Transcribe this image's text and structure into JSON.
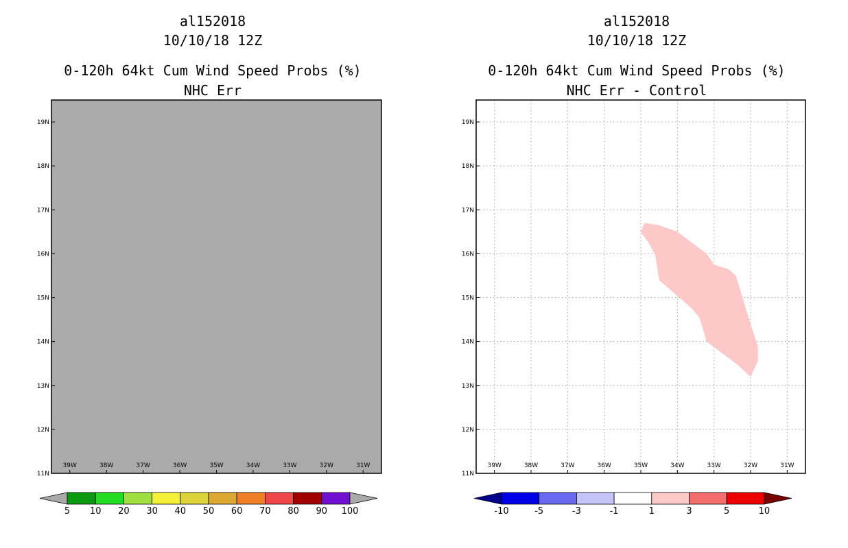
{
  "left_panel": {
    "storm_id": "al152018",
    "date": "10/10/18 12Z",
    "product": "0-120h 64kt Cum Wind Speed Probs (%)",
    "subtitle": "NHC Err",
    "field_color": "#aaaaaa",
    "colorbar": {
      "labels": [
        "5",
        "10",
        "20",
        "30",
        "40",
        "50",
        "60",
        "70",
        "80",
        "90",
        "100"
      ],
      "colors": [
        "#0a9a10",
        "#22dd22",
        "#9fdf40",
        "#f4f03a",
        "#dcd23a",
        "#dca832",
        "#f08028",
        "#f04848",
        "#a00000",
        "#7010d0"
      ],
      "end_color": "#aaaaaa"
    }
  },
  "right_panel": {
    "storm_id": "al152018",
    "date": "10/10/18 12Z",
    "product": "0-120h 64kt Cum Wind Speed Probs (%)",
    "subtitle": "NHC Err - Control",
    "region_color": "#fcc8c8",
    "region_lonlat": [
      [
        -34.9,
        16.7
      ],
      [
        -34.5,
        16.65
      ],
      [
        -34.0,
        16.5
      ],
      [
        -33.2,
        16.0
      ],
      [
        -33.0,
        15.75
      ],
      [
        -32.6,
        15.65
      ],
      [
        -32.4,
        15.5
      ],
      [
        -32.0,
        14.4
      ],
      [
        -31.8,
        13.9
      ],
      [
        -31.8,
        13.55
      ],
      [
        -32.0,
        13.2
      ],
      [
        -32.4,
        13.5
      ],
      [
        -33.2,
        14.0
      ],
      [
        -33.4,
        14.55
      ],
      [
        -33.6,
        14.75
      ],
      [
        -34.5,
        15.4
      ],
      [
        -34.6,
        15.95
      ],
      [
        -34.75,
        16.2
      ],
      [
        -35.0,
        16.5
      ]
    ],
    "colorbar": {
      "labels": [
        "-10",
        "-5",
        "-3",
        "-1",
        "1",
        "3",
        "5",
        "10"
      ],
      "colors": [
        "#0000e8",
        "#6868f0",
        "#c4c4f8",
        "#ffffff",
        "#fcc8c8",
        "#f46c6c",
        "#ee0000"
      ],
      "low_end_color": "#00008c",
      "high_end_color": "#780000"
    }
  },
  "map": {
    "lon_min": -39.5,
    "lon_max": -30.5,
    "lat_min": 11,
    "lat_max": 19.5,
    "lon_labels": [
      "39W",
      "38W",
      "37W",
      "36W",
      "35W",
      "34W",
      "33W",
      "32W",
      "31W"
    ],
    "lon_values": [
      -39,
      -38,
      -37,
      -36,
      -35,
      -34,
      -33,
      -32,
      -31
    ],
    "lat_labels": [
      "11N",
      "12N",
      "13N",
      "14N",
      "15N",
      "16N",
      "17N",
      "18N",
      "19N"
    ],
    "lat_values": [
      11,
      12,
      13,
      14,
      15,
      16,
      17,
      18,
      19
    ]
  }
}
